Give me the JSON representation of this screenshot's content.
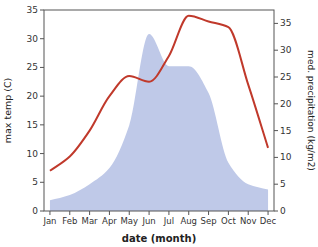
{
  "chart_data": {
    "type": "line",
    "xlabel": "date (month)",
    "ylabel": "max temp (C)",
    "y2label": "med. precipitation (kg/m2)",
    "categories": [
      "Jan",
      "Feb",
      "Mar",
      "Apr",
      "May",
      "Jun",
      "Jul",
      "Aug",
      "Sep",
      "Oct",
      "Nov",
      "Dec"
    ],
    "series": [
      {
        "type": "area",
        "axis": "y2",
        "color": "#bfc9e8",
        "values": [
          2,
          3,
          5,
          8,
          16,
          33,
          27,
          27,
          22,
          9,
          5,
          4
        ]
      },
      {
        "type": "line",
        "color": "#c0392b",
        "values": [
          7,
          9.5,
          14,
          20,
          23.5,
          22.5,
          27,
          34,
          33,
          32,
          22,
          11
        ]
      }
    ],
    "ylim": [
      0,
      35
    ],
    "yticks": [
      0,
      5,
      10,
      15,
      20,
      25,
      30,
      35
    ],
    "y2lim": [
      0,
      37.5
    ],
    "y2ticks": [
      0,
      5,
      10,
      15,
      20,
      25,
      30,
      35
    ],
    "grid": false
  }
}
